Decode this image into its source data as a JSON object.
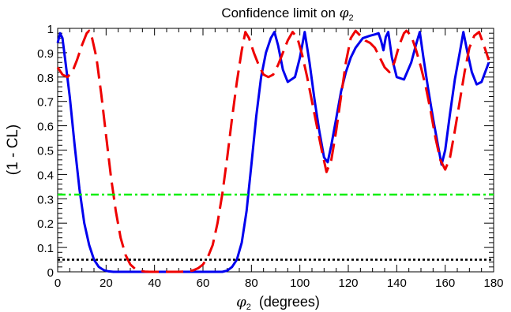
{
  "chart_data": {
    "type": "line",
    "title_prefix": "Confidence limit on ",
    "title_symbol": "φ",
    "title_sub": "2",
    "xlabel_symbol": "φ",
    "xlabel_sub": "2",
    "xlabel_suffix": "(degrees)",
    "ylabel": "(1 - CL)",
    "xlim": [
      0,
      180
    ],
    "ylim": [
      0,
      1
    ],
    "x_ticks": [
      "0",
      "20",
      "40",
      "60",
      "80",
      "100",
      "120",
      "140",
      "160",
      "180"
    ],
    "y_ticks": [
      "0",
      "0.1",
      "0.2",
      "0.3",
      "0.4",
      "0.5",
      "0.6",
      "0.7",
      "0.8",
      "0.9",
      "1"
    ],
    "grid": false,
    "legend": "none",
    "series": [
      {
        "color": "#0000ee",
        "dash": "solid",
        "x": [
          0,
          1,
          2,
          3,
          5,
          7,
          9,
          11,
          13,
          15,
          17,
          19,
          21,
          23,
          26,
          30,
          40,
          50,
          60,
          68,
          70,
          72,
          74,
          76,
          78,
          80,
          82,
          84,
          86,
          88,
          89.5,
          91,
          93,
          95,
          98,
          100,
          102,
          104,
          106,
          108,
          110,
          111.5,
          113,
          115,
          117,
          119,
          121,
          123,
          126,
          129,
          131,
          132.5,
          133.5,
          134.5,
          135.5,
          136.5,
          138,
          140,
          143,
          146,
          148,
          149.5,
          151,
          153,
          155,
          157,
          158.5,
          160,
          162,
          164,
          166,
          167.5,
          169,
          171,
          173,
          175,
          178
        ],
        "values": [
          0.94,
          0.98,
          0.96,
          0.88,
          0.72,
          0.52,
          0.34,
          0.2,
          0.11,
          0.05,
          0.02,
          0.007,
          0.002,
          0,
          0,
          0,
          0,
          0,
          0,
          0,
          0.005,
          0.02,
          0.05,
          0.12,
          0.25,
          0.44,
          0.64,
          0.8,
          0.9,
          0.96,
          0.985,
          0.93,
          0.83,
          0.78,
          0.8,
          0.88,
          0.985,
          0.86,
          0.71,
          0.58,
          0.47,
          0.45,
          0.52,
          0.63,
          0.74,
          0.82,
          0.88,
          0.92,
          0.96,
          0.97,
          0.975,
          0.98,
          0.95,
          0.91,
          0.965,
          0.985,
          0.88,
          0.8,
          0.79,
          0.86,
          0.935,
          0.985,
          0.88,
          0.75,
          0.63,
          0.52,
          0.44,
          0.5,
          0.65,
          0.79,
          0.9,
          0.985,
          0.91,
          0.82,
          0.77,
          0.78,
          0.86
        ]
      },
      {
        "color": "#ee0000",
        "dash": "long-dash",
        "x": [
          0,
          2,
          4,
          6,
          8,
          10,
          12,
          13,
          14,
          16,
          18,
          20,
          22,
          24,
          26,
          28,
          30,
          32,
          34,
          36,
          38,
          40,
          45,
          50,
          54,
          56,
          58,
          60,
          62,
          64,
          66,
          68,
          70,
          72,
          74,
          76,
          77.5,
          79,
          81,
          83,
          85,
          87,
          89,
          91,
          93,
          95,
          97,
          99,
          101,
          103,
          105,
          107,
          109,
          111,
          113,
          115,
          117,
          119,
          121,
          123,
          125,
          127,
          129,
          131,
          133,
          135,
          137,
          139,
          141,
          143,
          144,
          146,
          148,
          150,
          152,
          154,
          156,
          158,
          160,
          162,
          164,
          166,
          168,
          170,
          172,
          174,
          176,
          178
        ],
        "values": [
          0.84,
          0.81,
          0.8,
          0.82,
          0.87,
          0.93,
          0.98,
          0.99,
          0.97,
          0.88,
          0.73,
          0.56,
          0.39,
          0.25,
          0.14,
          0.07,
          0.03,
          0.012,
          0.004,
          0.001,
          0,
          0,
          0,
          0,
          0.002,
          0.006,
          0.015,
          0.03,
          0.06,
          0.11,
          0.2,
          0.32,
          0.47,
          0.63,
          0.78,
          0.91,
          0.985,
          0.96,
          0.9,
          0.85,
          0.81,
          0.8,
          0.81,
          0.85,
          0.9,
          0.95,
          0.985,
          0.96,
          0.89,
          0.8,
          0.7,
          0.6,
          0.5,
          0.41,
          0.46,
          0.58,
          0.72,
          0.86,
          0.96,
          0.99,
          0.97,
          0.95,
          0.94,
          0.92,
          0.88,
          0.84,
          0.82,
          0.86,
          0.93,
          0.98,
          0.99,
          0.97,
          0.91,
          0.84,
          0.76,
          0.66,
          0.55,
          0.46,
          0.42,
          0.47,
          0.58,
          0.7,
          0.82,
          0.92,
          0.97,
          0.985,
          0.93,
          0.87
        ]
      },
      {
        "color": "#00ee00",
        "dash": "dash-dot",
        "x": [
          0,
          180
        ],
        "values": [
          0.317,
          0.317
        ]
      },
      {
        "color": "#000000",
        "dash": "dot",
        "x": [
          0,
          180
        ],
        "values": [
          0.05,
          0.05
        ]
      }
    ]
  }
}
